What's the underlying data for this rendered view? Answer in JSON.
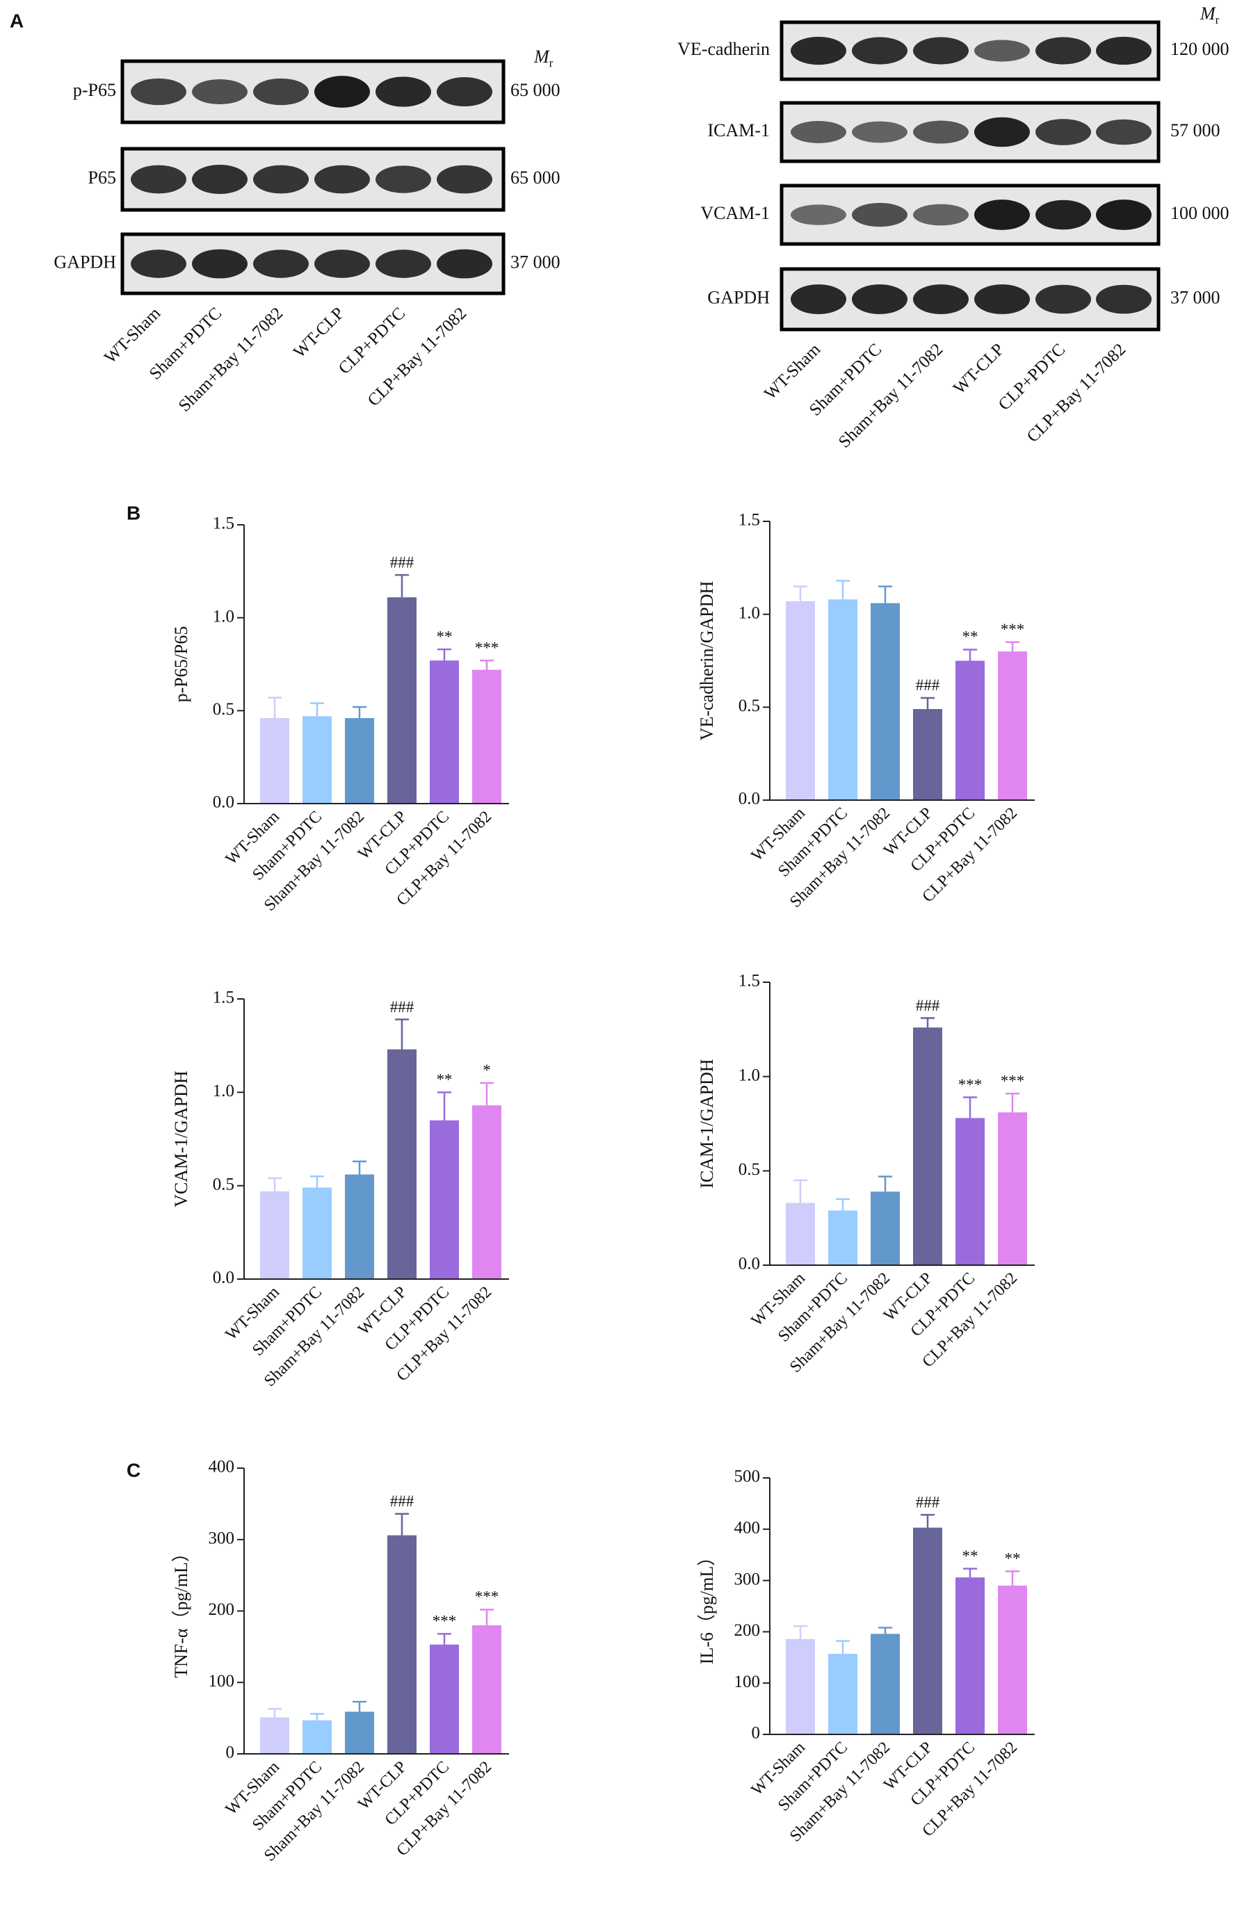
{
  "panel_labels": [
    "A",
    "B",
    "C"
  ],
  "blots": [
    {
      "mr_label": "M",
      "mr_sub": "r",
      "lanes": [
        "WT-Sham",
        "Sham+PDTC",
        "Sham+Bay 11-7082",
        "WT-CLP",
        "CLP+PDTC",
        "CLP+Bay 11-7082"
      ],
      "rows": [
        {
          "label": "p-P65",
          "mw": "65 000"
        },
        {
          "label": "P65",
          "mw": "65 000"
        },
        {
          "label": "GAPDH",
          "mw": "37 000"
        }
      ]
    },
    {
      "mr_label": "M",
      "mr_sub": "r",
      "lanes": [
        "WT-Sham",
        "Sham+PDTC",
        "Sham+Bay 11-7082",
        "WT-CLP",
        "CLP+PDTC",
        "CLP+Bay 11-7082"
      ],
      "rows": [
        {
          "label": "VE-cadherin",
          "mw": "120 000"
        },
        {
          "label": "ICAM-1",
          "mw": "57 000"
        },
        {
          "label": "VCAM-1",
          "mw": "100 000"
        },
        {
          "label": "GAPDH",
          "mw": "37 000"
        }
      ]
    }
  ],
  "chart_data": [
    {
      "type": "bar",
      "ylabel": "p-P65/P65",
      "categories": [
        "WT-Sham",
        "Sham+PDTC",
        "Sham+Bay 11-7082",
        "WT-CLP",
        "CLP+PDTC",
        "CLP+Bay 11-7082"
      ],
      "values": [
        0.46,
        0.47,
        0.46,
        1.11,
        0.77,
        0.72
      ],
      "errors": [
        0.11,
        0.07,
        0.06,
        0.12,
        0.06,
        0.05
      ],
      "annotations": [
        null,
        null,
        null,
        "###",
        "**",
        "***"
      ],
      "colors": [
        "#cfcdfb",
        "#99ccff",
        "#6398cc",
        "#676599",
        "#9a6bdd",
        "#e086f0"
      ],
      "ylim": [
        0,
        1.5
      ],
      "yticks": [
        {
          "value": 0,
          "label": "0.0"
        },
        {
          "value": 0.5,
          "label": "0.5"
        },
        {
          "value": 1,
          "label": "1.0"
        },
        {
          "value": 1.5,
          "label": "1.5"
        }
      ]
    },
    {
      "type": "bar",
      "ylabel": "VE-cadherin/GAPDH",
      "categories": [
        "WT-Sham",
        "Sham+PDTC",
        "Sham+Bay 11-7082",
        "WT-CLP",
        "CLP+PDTC",
        "CLP+Bay 11-7082"
      ],
      "values": [
        1.07,
        1.08,
        1.06,
        0.49,
        0.75,
        0.8
      ],
      "errors": [
        0.08,
        0.1,
        0.09,
        0.06,
        0.06,
        0.05
      ],
      "annotations": [
        null,
        null,
        null,
        "###",
        "**",
        "***"
      ],
      "colors": [
        "#cfcdfb",
        "#99ccff",
        "#6398cc",
        "#676599",
        "#9a6bdd",
        "#e086f0"
      ],
      "ylim": [
        0,
        1.5
      ],
      "yticks": [
        {
          "value": 0,
          "label": "0.0"
        },
        {
          "value": 0.5,
          "label": "0.5"
        },
        {
          "value": 1,
          "label": "1.0"
        },
        {
          "value": 1.5,
          "label": "1.5"
        }
      ]
    },
    {
      "type": "bar",
      "ylabel": "VCAM-1/GAPDH",
      "categories": [
        "WT-Sham",
        "Sham+PDTC",
        "Sham+Bay 11-7082",
        "WT-CLP",
        "CLP+PDTC",
        "CLP+Bay 11-7082"
      ],
      "values": [
        0.47,
        0.49,
        0.56,
        1.23,
        0.85,
        0.93
      ],
      "errors": [
        0.07,
        0.06,
        0.07,
        0.16,
        0.15,
        0.12
      ],
      "annotations": [
        null,
        null,
        null,
        "###",
        "**",
        "*"
      ],
      "colors": [
        "#cfcdfb",
        "#99ccff",
        "#6398cc",
        "#676599",
        "#9a6bdd",
        "#e086f0"
      ],
      "ylim": [
        0,
        1.5
      ],
      "yticks": [
        {
          "value": 0,
          "label": "0.0"
        },
        {
          "value": 0.5,
          "label": "0.5"
        },
        {
          "value": 1,
          "label": "1.0"
        },
        {
          "value": 1.5,
          "label": "1.5"
        }
      ]
    },
    {
      "type": "bar",
      "ylabel": "ICAM-1/GAPDH",
      "categories": [
        "WT-Sham",
        "Sham+PDTC",
        "Sham+Bay 11-7082",
        "WT-CLP",
        "CLP+PDTC",
        "CLP+Bay 11-7082"
      ],
      "values": [
        0.33,
        0.29,
        0.39,
        1.26,
        0.78,
        0.81
      ],
      "errors": [
        0.12,
        0.06,
        0.08,
        0.05,
        0.11,
        0.1
      ],
      "annotations": [
        null,
        null,
        null,
        "###",
        "***",
        "***"
      ],
      "colors": [
        "#cfcdfb",
        "#99ccff",
        "#6398cc",
        "#676599",
        "#9a6bdd",
        "#e086f0"
      ],
      "ylim": [
        0,
        1.5
      ],
      "yticks": [
        {
          "value": 0,
          "label": "0.0"
        },
        {
          "value": 0.5,
          "label": "0.5"
        },
        {
          "value": 1,
          "label": "1.0"
        },
        {
          "value": 1.5,
          "label": "1.5"
        }
      ]
    },
    {
      "type": "bar",
      "ylabel": "TNF-α（pg/mL）",
      "categories": [
        "WT-Sham",
        "Sham+PDTC",
        "Sham+Bay 11-7082",
        "WT-CLP",
        "CLP+PDTC",
        "CLP+Bay 11-7082"
      ],
      "values": [
        51,
        47,
        59,
        306,
        153,
        180
      ],
      "errors": [
        12,
        9,
        14,
        30,
        15,
        22
      ],
      "annotations": [
        null,
        null,
        null,
        "###",
        "***",
        "***"
      ],
      "colors": [
        "#cfcdfb",
        "#99ccff",
        "#6398cc",
        "#676599",
        "#9a6bdd",
        "#e086f0"
      ],
      "ylim": [
        0,
        400
      ],
      "yticks": [
        0,
        100,
        200,
        300,
        400
      ]
    },
    {
      "type": "bar",
      "ylabel": "IL-6（pg/mL）",
      "categories": [
        "WT-Sham",
        "Sham+PDTC",
        "Sham+Bay 11-7082",
        "WT-CLP",
        "CLP+PDTC",
        "CLP+Bay 11-7082"
      ],
      "values": [
        186,
        157,
        196,
        403,
        306,
        290
      ],
      "errors": [
        25,
        25,
        12,
        25,
        17,
        28
      ],
      "annotations": [
        null,
        null,
        null,
        "###",
        "**",
        "**"
      ],
      "colors": [
        "#cfcdfb",
        "#99ccff",
        "#6398cc",
        "#676599",
        "#9a6bdd",
        "#e086f0"
      ],
      "ylim": [
        0,
        500
      ],
      "yticks": [
        0,
        100,
        200,
        300,
        400,
        500
      ]
    }
  ]
}
